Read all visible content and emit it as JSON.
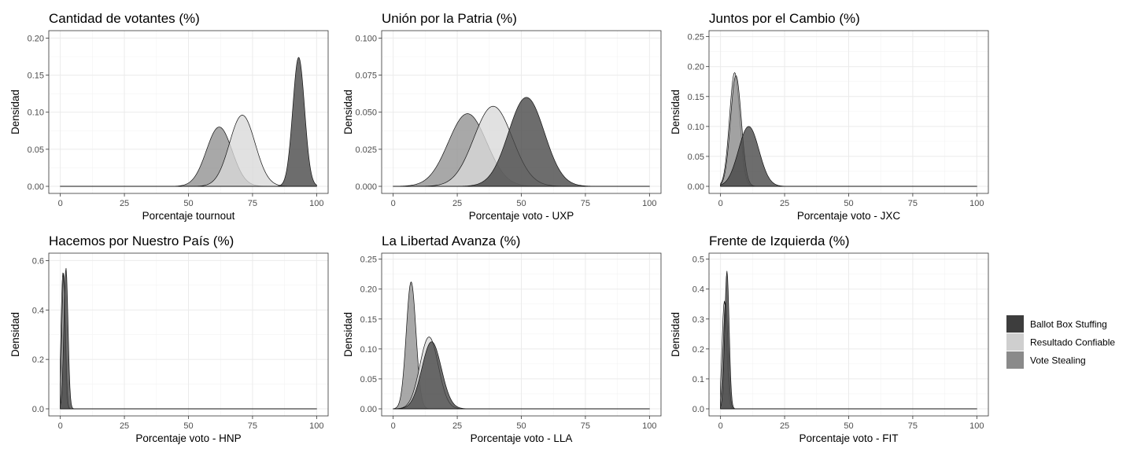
{
  "chart_data": [
    {
      "type": "area",
      "title": "Cantidad de votantes (%)",
      "xlabel": "Porcentaje tournout",
      "ylabel": "Densidad",
      "xlim": [
        0,
        100
      ],
      "ylim": [
        0,
        0.21
      ],
      "x_ticks": [
        0,
        25,
        50,
        75,
        100
      ],
      "y_ticks": [
        0.0,
        0.05,
        0.1,
        0.15,
        0.2
      ],
      "y_tick_labels": [
        "0.00",
        "0.05",
        "0.10",
        "0.15",
        "0.20"
      ],
      "series": [
        {
          "name": "Vote Stealing",
          "mean": 62,
          "sd": 5,
          "peak": 0.08
        },
        {
          "name": "Resultado Confiable",
          "mean": 71,
          "sd": 5,
          "peak": 0.096
        },
        {
          "name": "Ballot Box Stuffing",
          "mean": 93,
          "sd": 2.3,
          "peak": 0.174
        }
      ]
    },
    {
      "type": "area",
      "title": "Unión por la Patria (%)",
      "xlabel": "Porcentaje voto - UXP",
      "ylabel": "Densidad",
      "xlim": [
        0,
        100
      ],
      "ylim": [
        0,
        0.105
      ],
      "x_ticks": [
        0,
        25,
        50,
        75,
        100
      ],
      "y_ticks": [
        0.0,
        0.025,
        0.05,
        0.075,
        0.1
      ],
      "y_tick_labels": [
        "0.000",
        "0.025",
        "0.050",
        "0.075",
        "0.100"
      ],
      "series": [
        {
          "name": "Vote Stealing",
          "mean": 29,
          "sd": 7.5,
          "peak": 0.049
        },
        {
          "name": "Resultado Confiable",
          "mean": 39,
          "sd": 7.5,
          "peak": 0.054
        },
        {
          "name": "Ballot Box Stuffing",
          "mean": 52,
          "sd": 7,
          "peak": 0.06
        }
      ]
    },
    {
      "type": "area",
      "title": "Juntos por el Cambio (%)",
      "xlabel": "Porcentaje voto - JXC",
      "ylabel": "Densidad",
      "xlim": [
        0,
        100
      ],
      "ylim": [
        0,
        0.26
      ],
      "x_ticks": [
        0,
        25,
        50,
        75,
        100
      ],
      "y_ticks": [
        0.0,
        0.05,
        0.1,
        0.15,
        0.2,
        0.25
      ],
      "y_tick_labels": [
        "0.00",
        "0.05",
        "0.10",
        "0.15",
        "0.20",
        "0.25"
      ],
      "series": [
        {
          "name": "Resultado Confiable",
          "mean": 5.5,
          "sd": 2,
          "peak": 0.19
        },
        {
          "name": "Vote Stealing",
          "mean": 6,
          "sd": 2.1,
          "peak": 0.185
        },
        {
          "name": "Ballot Box Stuffing",
          "mean": 11,
          "sd": 4,
          "peak": 0.1
        }
      ]
    },
    {
      "type": "area",
      "title": "Hacemos por Nuestro País (%)",
      "xlabel": "Porcentaje voto - HNP",
      "ylabel": "Densidad",
      "xlim": [
        0,
        100
      ],
      "ylim": [
        0,
        0.63
      ],
      "x_ticks": [
        0,
        25,
        50,
        75,
        100
      ],
      "y_ticks": [
        0.0,
        0.2,
        0.4,
        0.6
      ],
      "y_tick_labels": [
        "0.0",
        "0.2",
        "0.4",
        "0.6"
      ],
      "series": [
        {
          "name": "Resultado Confiable",
          "mean": 1.0,
          "sd": 0.7,
          "peak": 0.55
        },
        {
          "name": "Vote Stealing",
          "mean": 1.3,
          "sd": 0.7,
          "peak": 0.55
        },
        {
          "name": "Ballot Box Stuffing",
          "mean": 2.2,
          "sd": 0.8,
          "peak": 0.57
        }
      ]
    },
    {
      "type": "area",
      "title": "La Libertad Avanza (%)",
      "xlabel": "Porcentaje voto - LLA",
      "ylabel": "Densidad",
      "xlim": [
        0,
        100
      ],
      "ylim": [
        0,
        0.26
      ],
      "x_ticks": [
        0,
        25,
        50,
        75,
        100
      ],
      "y_ticks": [
        0.0,
        0.05,
        0.1,
        0.15,
        0.2,
        0.25
      ],
      "y_tick_labels": [
        "0.00",
        "0.05",
        "0.10",
        "0.15",
        "0.20",
        "0.25"
      ],
      "series": [
        {
          "name": "Vote Stealing",
          "mean": 7,
          "sd": 1.9,
          "peak": 0.212
        },
        {
          "name": "Resultado Confiable",
          "mean": 14,
          "sd": 3.6,
          "peak": 0.12
        },
        {
          "name": "Ballot Box Stuffing",
          "mean": 15,
          "sd": 3.8,
          "peak": 0.112
        }
      ]
    },
    {
      "type": "area",
      "title": "Frente de Izquierda (%)",
      "xlabel": "Porcentaje voto - FIT",
      "ylabel": "Densidad",
      "xlim": [
        0,
        100
      ],
      "ylim": [
        0,
        0.52
      ],
      "x_ticks": [
        0,
        25,
        50,
        75,
        100
      ],
      "y_ticks": [
        0.0,
        0.1,
        0.2,
        0.3,
        0.4,
        0.5
      ],
      "y_tick_labels": [
        "0.0",
        "0.1",
        "0.2",
        "0.3",
        "0.4",
        "0.5"
      ],
      "series": [
        {
          "name": "Resultado Confiable",
          "mean": 1.5,
          "sd": 0.9,
          "peak": 0.36
        },
        {
          "name": "Vote Stealing",
          "mean": 2.0,
          "sd": 0.9,
          "peak": 0.36
        },
        {
          "name": "Ballot Box Stuffing",
          "mean": 2.5,
          "sd": 0.85,
          "peak": 0.46
        }
      ]
    }
  ],
  "legend": {
    "placement": "right",
    "items": [
      {
        "name": "Ballot Box Stuffing",
        "color": "#3d3d3d"
      },
      {
        "name": "Resultado Confiable",
        "color": "#cfcfcf"
      },
      {
        "name": "Vote Stealing",
        "color": "#8a8a8a"
      }
    ]
  },
  "series_colors": {
    "Ballot Box Stuffing": "#444444",
    "Resultado Confiable": "#d9d9d9",
    "Vote Stealing": "#8f8f8f"
  },
  "grid": true
}
